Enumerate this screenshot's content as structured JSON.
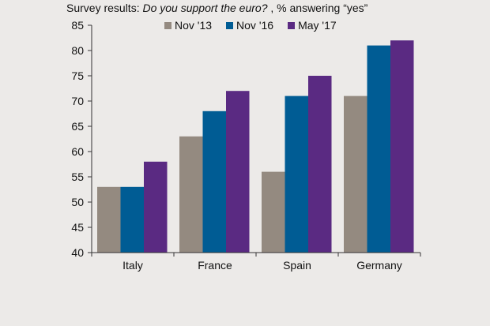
{
  "title": {
    "prefix": "Survey results: ",
    "question": "Do you support the euro?",
    "suffix": " , % answering “yes”"
  },
  "chart_data": {
    "type": "bar",
    "categories": [
      "Italy",
      "France",
      "Spain",
      "Germany"
    ],
    "series": [
      {
        "name": "Nov '13",
        "color": "#948a80",
        "values": [
          53,
          63,
          56,
          71
        ]
      },
      {
        "name": "Nov '16",
        "color": "#005c94",
        "values": [
          53,
          68,
          71,
          81
        ]
      },
      {
        "name": "May '17",
        "color": "#5a2a82",
        "values": [
          58,
          72,
          75,
          82
        ]
      }
    ],
    "ylim": [
      40,
      85
    ],
    "yticks": [
      40,
      45,
      50,
      55,
      60,
      65,
      70,
      75,
      80,
      85
    ],
    "grid": false,
    "legend_position": "top"
  }
}
